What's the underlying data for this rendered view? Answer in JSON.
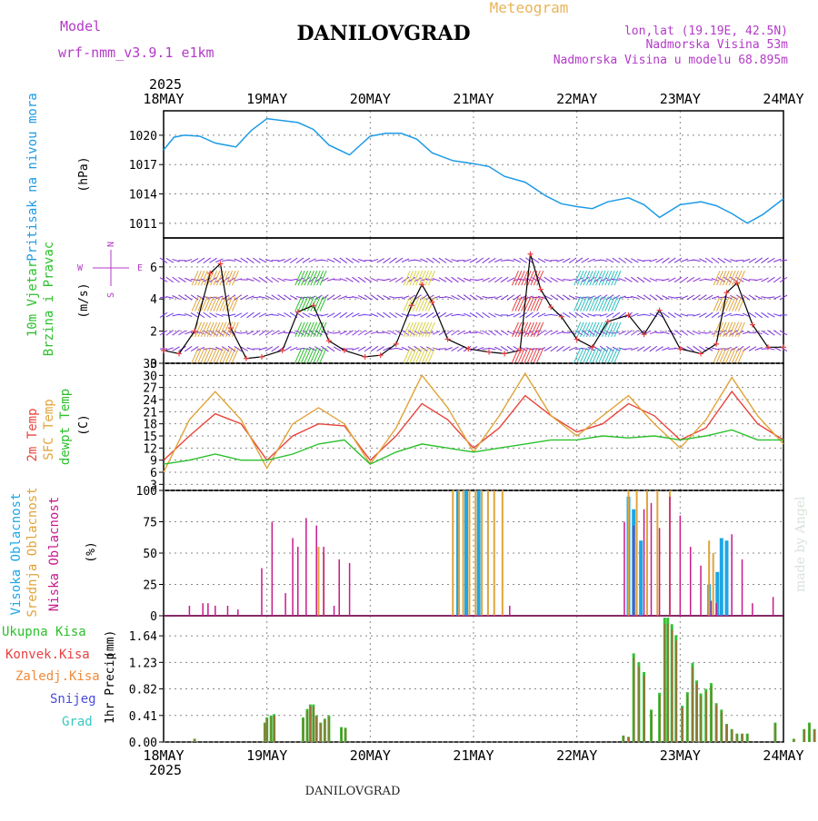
{
  "header": {
    "model_label": "Model",
    "model_name": "wrf-nmm_v3.9.1 e1km",
    "station": "DANILOVGRAD",
    "meteogram": "Meteogram",
    "lonlat": "lon,lat (19.19E, 42.5N)",
    "altitude": "Nadmorska Visina 53m",
    "model_altitude": "Nadmorska Visina u modelu 68.895m",
    "credit": "made by Angel",
    "footer_station": "DANILOVGRAD"
  },
  "time_axis": {
    "year": "2025",
    "labels": [
      "18MAY",
      "19MAY",
      "20MAY",
      "21MAY",
      "22MAY",
      "23MAY",
      "24MAY"
    ]
  },
  "colors": {
    "pressure": "#1e9be6",
    "t2m": "#e8453c",
    "sfc": "#e0a43a",
    "dew": "#2cc02c",
    "high_cloud": "#1ea6e6",
    "mid_cloud": "#e0a43a",
    "low_cloud": "#c81a8c",
    "total_precip": "#34c234",
    "conv_precip": "#e84040",
    "frozen_precip": "#f08a3a",
    "snow": "#4a4ae0",
    "graupel": "#3ac8c0",
    "wind_label": "#2cc02c",
    "compass": "#b43ac8",
    "grid": "#888888"
  },
  "chart_data": [
    {
      "type": "line",
      "panel": "pressure",
      "ylabel": "Pritisak na nivou mora",
      "unit": "(hPa)",
      "yticks": [
        1011,
        1014,
        1017,
        1020
      ],
      "ylim": [
        1009.5,
        1022.5
      ],
      "x_days": [
        0,
        0.1,
        0.2,
        0.35,
        0.5,
        0.7,
        0.85,
        1.0,
        1.15,
        1.3,
        1.45,
        1.6,
        1.8,
        2.0,
        2.15,
        2.3,
        2.45,
        2.6,
        2.8,
        3.0,
        3.15,
        3.3,
        3.5,
        3.7,
        3.85,
        4.0,
        4.15,
        4.3,
        4.5,
        4.65,
        4.8,
        5.0,
        5.2,
        5.35,
        5.5,
        5.65,
        5.8,
        6.0
      ],
      "values": [
        1018.5,
        1019.8,
        1020.0,
        1019.9,
        1019.2,
        1018.8,
        1020.5,
        1021.7,
        1021.5,
        1021.3,
        1020.6,
        1019.0,
        1018.0,
        1019.9,
        1020.2,
        1020.2,
        1019.6,
        1018.2,
        1017.4,
        1017.1,
        1016.8,
        1015.8,
        1015.2,
        1013.8,
        1013.0,
        1012.7,
        1012.5,
        1013.2,
        1013.6,
        1012.9,
        1011.6,
        1012.9,
        1013.2,
        1012.8,
        1012.0,
        1011.0,
        1011.9,
        1013.5
      ]
    },
    {
      "type": "line",
      "panel": "wind",
      "ylabel": "10m Vjetar Brzina i Pravac",
      "unit": "(m/s)",
      "compass_labels": [
        "W",
        "E",
        "N",
        "S"
      ],
      "yticks": [
        0,
        2,
        4,
        6
      ],
      "ylim": [
        0,
        7.8
      ],
      "x_days": [
        0,
        0.15,
        0.3,
        0.45,
        0.55,
        0.65,
        0.8,
        0.95,
        1.15,
        1.3,
        1.45,
        1.6,
        1.75,
        1.95,
        2.1,
        2.25,
        2.4,
        2.5,
        2.6,
        2.75,
        2.95,
        3.15,
        3.3,
        3.45,
        3.55,
        3.65,
        3.75,
        3.85,
        4.0,
        4.15,
        4.3,
        4.5,
        4.65,
        4.8,
        5.0,
        5.2,
        5.35,
        5.45,
        5.55,
        5.7,
        5.85,
        6.0
      ],
      "values": [
        0.8,
        0.6,
        2.0,
        5.6,
        6.2,
        2.2,
        0.3,
        0.4,
        0.8,
        3.2,
        3.6,
        1.4,
        0.8,
        0.4,
        0.5,
        1.2,
        3.6,
        4.9,
        3.8,
        1.5,
        0.9,
        0.7,
        0.6,
        0.8,
        6.8,
        4.6,
        3.5,
        2.9,
        1.5,
        1.0,
        2.6,
        3.0,
        1.8,
        3.3,
        0.9,
        0.6,
        1.2,
        4.4,
        5.0,
        2.4,
        1.0,
        1.0
      ]
    },
    {
      "type": "line",
      "panel": "temperature",
      "ylabel": [
        "2m Temp",
        "SFC Temp",
        "dewpt Temp"
      ],
      "unit": "(C)",
      "yticks": [
        3,
        6,
        9,
        12,
        15,
        18,
        21,
        24,
        27,
        30,
        33
      ],
      "ylim": [
        1.5,
        33
      ],
      "x_days": [
        0,
        0.25,
        0.5,
        0.75,
        1.0,
        1.25,
        1.5,
        1.75,
        2.0,
        2.25,
        2.5,
        2.75,
        3.0,
        3.25,
        3.5,
        3.75,
        4.0,
        4.25,
        4.5,
        4.75,
        5.0,
        5.25,
        5.5,
        5.75,
        6.0
      ],
      "series": [
        {
          "name": "2m Temp",
          "values": [
            9,
            15,
            20.5,
            18,
            9,
            15,
            18,
            17.5,
            9,
            15,
            23,
            19,
            12,
            17,
            25,
            20,
            16,
            18,
            23,
            20,
            14,
            17,
            26,
            18,
            14
          ]
        },
        {
          "name": "SFC Temp",
          "values": [
            6,
            19,
            26,
            19,
            7,
            18,
            22,
            18,
            8,
            17,
            30,
            22,
            11,
            20,
            30.5,
            20,
            15,
            20,
            25,
            18,
            12,
            19,
            29.5,
            20,
            13
          ]
        },
        {
          "name": "dewpt Temp",
          "values": [
            8,
            9,
            10.5,
            9,
            9,
            10.5,
            13,
            14,
            8,
            11,
            13,
            12,
            11,
            12,
            13,
            14,
            14,
            15,
            14.5,
            15,
            14,
            15,
            16.5,
            14,
            14
          ]
        }
      ]
    },
    {
      "type": "bar",
      "panel": "cloud",
      "ylabel": [
        "Visoka Oblacnost",
        "Srednja Oblacnost",
        "Niska Oblacnost"
      ],
      "unit": "(%)",
      "yticks": [
        0,
        25,
        50,
        75,
        100
      ],
      "ylim": [
        0,
        100
      ],
      "series": [
        {
          "name": "Visoka Oblacnost",
          "points": [
            [
              2.85,
              100
            ],
            [
              2.93,
              100
            ],
            [
              3.05,
              100
            ],
            [
              4.5,
              95
            ],
            [
              4.55,
              85
            ],
            [
              4.62,
              60
            ],
            [
              5.28,
              25
            ],
            [
              5.36,
              35
            ],
            [
              5.4,
              62
            ],
            [
              5.45,
              60
            ]
          ]
        },
        {
          "name": "Srednja Oblacnost",
          "points": [
            [
              1.5,
              55
            ],
            [
              1.55,
              50
            ],
            [
              2.8,
              100
            ],
            [
              2.86,
              100
            ],
            [
              2.9,
              100
            ],
            [
              2.96,
              100
            ],
            [
              3.02,
              100
            ],
            [
              3.08,
              100
            ],
            [
              3.14,
              100
            ],
            [
              3.2,
              100
            ],
            [
              3.28,
              100
            ],
            [
              4.5,
              100
            ],
            [
              4.58,
              100
            ],
            [
              4.68,
              100
            ],
            [
              4.78,
              100
            ],
            [
              4.9,
              100
            ],
            [
              5.28,
              60
            ],
            [
              5.32,
              50
            ]
          ]
        },
        {
          "name": "Niska Oblacnost",
          "points": [
            [
              0.25,
              8
            ],
            [
              0.38,
              10
            ],
            [
              0.43,
              10
            ],
            [
              0.5,
              8
            ],
            [
              0.62,
              8
            ],
            [
              0.72,
              5
            ],
            [
              0.95,
              38
            ],
            [
              1.05,
              75
            ],
            [
              1.18,
              18
            ],
            [
              1.25,
              62
            ],
            [
              1.3,
              55
            ],
            [
              1.38,
              78
            ],
            [
              1.48,
              72
            ],
            [
              1.55,
              55
            ],
            [
              1.65,
              8
            ],
            [
              1.7,
              45
            ],
            [
              1.8,
              42
            ],
            [
              3.35,
              8
            ],
            [
              4.46,
              75
            ],
            [
              4.55,
              72
            ],
            [
              4.65,
              85
            ],
            [
              4.72,
              90
            ],
            [
              4.8,
              70
            ],
            [
              4.9,
              95
            ],
            [
              5.0,
              80
            ],
            [
              5.1,
              55
            ],
            [
              5.2,
              40
            ],
            [
              5.3,
              12
            ],
            [
              5.35,
              10
            ],
            [
              5.5,
              65
            ],
            [
              5.6,
              45
            ],
            [
              5.7,
              10
            ],
            [
              5.9,
              15
            ]
          ]
        }
      ]
    },
    {
      "type": "bar",
      "panel": "precip",
      "ylabel": "1hr Precip",
      "unit": "(mm)",
      "legend": [
        "Ukupna Kisa",
        "Konvek.Kisa",
        "Zaledj.Kisa",
        "Snijeg",
        "Grad"
      ],
      "yticks": [
        0,
        0.41,
        0.82,
        1.23,
        1.64
      ],
      "ylim": [
        0,
        1.95
      ],
      "total": [
        [
          0.3,
          0.05
        ],
        [
          0.98,
          0.3
        ],
        [
          1.0,
          0.38
        ],
        [
          1.04,
          0.41
        ],
        [
          1.07,
          0.43
        ],
        [
          1.35,
          0.38
        ],
        [
          1.39,
          0.51
        ],
        [
          1.42,
          0.58
        ],
        [
          1.45,
          0.58
        ],
        [
          1.48,
          0.41
        ],
        [
          1.52,
          0.3
        ],
        [
          1.56,
          0.36
        ],
        [
          1.6,
          0.41
        ],
        [
          1.72,
          0.23
        ],
        [
          1.76,
          0.22
        ],
        [
          4.45,
          0.1
        ],
        [
          4.5,
          0.08
        ],
        [
          4.55,
          1.37
        ],
        [
          4.6,
          1.23
        ],
        [
          4.65,
          1.08
        ],
        [
          4.72,
          0.5
        ],
        [
          4.8,
          0.76
        ],
        [
          4.85,
          1.92
        ],
        [
          4.88,
          1.92
        ],
        [
          4.92,
          1.82
        ],
        [
          4.96,
          1.65
        ],
        [
          5.02,
          0.56
        ],
        [
          5.07,
          0.77
        ],
        [
          5.12,
          1.22
        ],
        [
          5.16,
          0.95
        ],
        [
          5.2,
          0.75
        ],
        [
          5.25,
          0.82
        ],
        [
          5.3,
          0.91
        ],
        [
          5.35,
          0.6
        ],
        [
          5.4,
          0.5
        ],
        [
          5.45,
          0.28
        ],
        [
          5.5,
          0.2
        ],
        [
          5.55,
          0.13
        ],
        [
          5.6,
          0.13
        ],
        [
          5.65,
          0.13
        ],
        [
          5.92,
          0.3
        ],
        [
          6.1,
          0.05
        ],
        [
          6.2,
          0.2
        ],
        [
          6.25,
          0.3
        ],
        [
          6.3,
          0.2
        ],
        [
          6.35,
          0.05
        ]
      ]
    }
  ]
}
